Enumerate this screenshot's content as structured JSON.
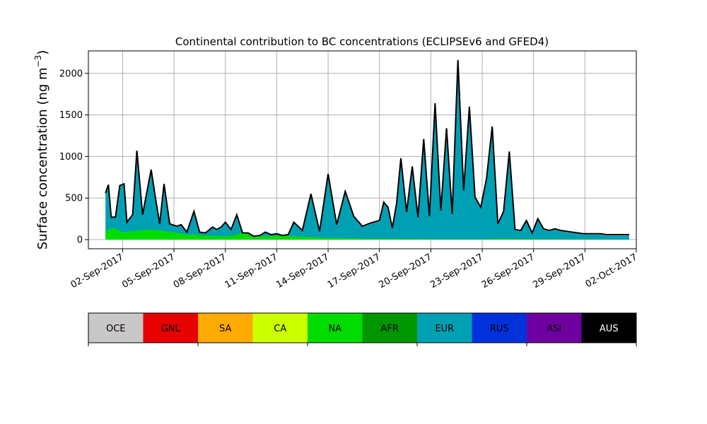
{
  "chart_data": {
    "type": "area",
    "title": "Continental contribution to BC concentrations (ECLIPSEv6 and GFED4)",
    "ylabel_base": "Surface concentration (ng m",
    "ylabel_exp": "−3",
    "ylabel_close": ")",
    "xlabel": "",
    "grid": true,
    "x_is_date": true,
    "xlim": [
      "2017-08-31T00:00",
      "2017-10-02T00:00"
    ],
    "ylim": [
      -110,
      2270
    ],
    "yticks": [
      0,
      500,
      1000,
      1500,
      2000
    ],
    "ytick_labels": [
      "0",
      "500",
      "1000",
      "1500",
      "2000"
    ],
    "xticks": [
      "2017-09-02",
      "2017-09-05",
      "2017-09-08",
      "2017-09-11",
      "2017-09-14",
      "2017-09-17",
      "2017-09-20",
      "2017-09-23",
      "2017-09-26",
      "2017-09-29",
      "2017-10-02"
    ],
    "xtick_labels": [
      "02-Sep-2017",
      "05-Sep-2017",
      "08-Sep-2017",
      "11-Sep-2017",
      "14-Sep-2017",
      "17-Sep-2017",
      "20-Sep-2017",
      "23-Sep-2017",
      "26-Sep-2017",
      "29-Sep-2017",
      "02-Oct-2017"
    ],
    "series": [
      {
        "name": "NA",
        "color": "#00dc00",
        "x": [
          "2017-09-01T00:00",
          "2017-09-01T06:00",
          "2017-09-01T12:00",
          "2017-09-02T00:00",
          "2017-09-02T12:00",
          "2017-09-03T00:00",
          "2017-09-03T12:00",
          "2017-09-04T00:00",
          "2017-09-04T12:00",
          "2017-09-05T00:00",
          "2017-09-05T12:00",
          "2017-09-06T00:00",
          "2017-09-06T12:00",
          "2017-09-07T00:00",
          "2017-09-07T12:00",
          "2017-09-08T00:00",
          "2017-09-08T12:00",
          "2017-09-09T00:00",
          "2017-09-09T12:00",
          "2017-09-10T00:00",
          "2017-09-10T12:00",
          "2017-09-11T00:00",
          "2017-09-11T12:00",
          "2017-09-12T00:00",
          "2017-09-12T12:00",
          "2017-09-13T00:00",
          "2017-09-14T00:00",
          "2017-09-15T00:00",
          "2017-09-16T00:00",
          "2017-09-17T00:00",
          "2017-09-18T00:00",
          "2017-09-19T00:00",
          "2017-09-20T00:00",
          "2017-09-21T00:00",
          "2017-09-22T00:00",
          "2017-09-23T00:00",
          "2017-09-24T00:00",
          "2017-09-25T00:00",
          "2017-09-26T00:00",
          "2017-09-27T00:00",
          "2017-09-28T00:00",
          "2017-09-29T00:00",
          "2017-09-30T00:00",
          "2017-09-30T12:00",
          "2017-10-01T00:00"
        ],
        "values": [
          100,
          130,
          140,
          90,
          100,
          110,
          120,
          115,
          100,
          90,
          70,
          60,
          55,
          50,
          45,
          40,
          50,
          90,
          50,
          45,
          40,
          45,
          50,
          40,
          35,
          30,
          20,
          15,
          12,
          10,
          8,
          8,
          6,
          5,
          5,
          4,
          10,
          8,
          6,
          5,
          4,
          4,
          3,
          3,
          3
        ]
      },
      {
        "name": "EUR",
        "color": "#00a0b4",
        "x": [
          "2017-09-01T00:00",
          "2017-09-01T04:00",
          "2017-09-01T08:00",
          "2017-09-01T14:00",
          "2017-09-01T20:00",
          "2017-09-02T02:00",
          "2017-09-02T06:00",
          "2017-09-02T14:00",
          "2017-09-02T20:00",
          "2017-09-03T04:00",
          "2017-09-03T10:00",
          "2017-09-03T16:00",
          "2017-09-03T22:00",
          "2017-09-04T04:00",
          "2017-09-04T10:00",
          "2017-09-04T18:00",
          "2017-09-05T04:00",
          "2017-09-05T10:00",
          "2017-09-05T18:00",
          "2017-09-06T04:00",
          "2017-09-06T12:00",
          "2017-09-06T20:00",
          "2017-09-07T06:00",
          "2017-09-07T12:00",
          "2017-09-07T18:00",
          "2017-09-08T00:00",
          "2017-09-08T08:00",
          "2017-09-08T16:00",
          "2017-09-09T00:00",
          "2017-09-09T08:00",
          "2017-09-09T16:00",
          "2017-09-10T00:00",
          "2017-09-10T08:00",
          "2017-09-10T16:00",
          "2017-09-11T00:00",
          "2017-09-11T08:00",
          "2017-09-11T16:00",
          "2017-09-12T00:00",
          "2017-09-12T12:00",
          "2017-09-13T00:00",
          "2017-09-13T12:00",
          "2017-09-14T00:00",
          "2017-09-14T12:00",
          "2017-09-15T00:00",
          "2017-09-15T12:00",
          "2017-09-16T00:00",
          "2017-09-16T12:00",
          "2017-09-17T00:00",
          "2017-09-17T06:00",
          "2017-09-17T12:00",
          "2017-09-17T18:00",
          "2017-09-18T00:00",
          "2017-09-18T06:00",
          "2017-09-18T14:00",
          "2017-09-18T22:00",
          "2017-09-19T06:00",
          "2017-09-19T14:00",
          "2017-09-19T22:00",
          "2017-09-20T06:00",
          "2017-09-20T14:00",
          "2017-09-20T22:00",
          "2017-09-21T06:00",
          "2017-09-21T14:00",
          "2017-09-21T22:00",
          "2017-09-22T06:00",
          "2017-09-22T14:00",
          "2017-09-22T22:00",
          "2017-09-23T06:00",
          "2017-09-23T14:00",
          "2017-09-23T22:00",
          "2017-09-24T06:00",
          "2017-09-24T14:00",
          "2017-09-24T22:00",
          "2017-09-25T06:00",
          "2017-09-25T14:00",
          "2017-09-25T22:00",
          "2017-09-26T06:00",
          "2017-09-26T14:00",
          "2017-09-26T22:00",
          "2017-09-27T06:00",
          "2017-09-27T14:00",
          "2017-09-27T22:00",
          "2017-09-28T06:00",
          "2017-09-28T14:00",
          "2017-09-28T22:00",
          "2017-09-29T06:00",
          "2017-09-29T14:00",
          "2017-09-29T22:00",
          "2017-09-30T06:00",
          "2017-09-30T14:00",
          "2017-09-30T22:00",
          "2017-10-01T06:00",
          "2017-10-01T14:00"
        ],
        "values": [
          560,
          650,
          280,
          270,
          640,
          660,
          200,
          290,
          1070,
          300,
          560,
          830,
          480,
          180,
          660,
          180,
          150,
          170,
          90,
          330,
          90,
          80,
          140,
          110,
          140,
          200,
          110,
          300,
          80,
          80,
          40,
          50,
          90,
          60,
          70,
          50,
          60,
          200,
          100,
          540,
          90,
          780,
          170,
          570,
          270,
          150,
          190,
          220,
          440,
          380,
          130,
          420,
          980,
          320,
          870,
          270,
          1200,
          270,
          1620,
          340,
          1330,
          300,
          2150,
          580,
          1580,
          500,
          380,
          720,
          1350,
          180,
          330,
          1050,
          110,
          100,
          220,
          70,
          240,
          120,
          100,
          120,
          100,
          90,
          80,
          70,
          60,
          60,
          60,
          60,
          50,
          50,
          50,
          50,
          50
        ]
      }
    ],
    "total_line": {
      "color": "#000000",
      "note_from_image": "",
      "x": [
        "2017-09-01T00:00",
        "2017-09-01T04:00",
        "2017-09-01T08:00",
        "2017-09-01T14:00",
        "2017-09-01T20:00",
        "2017-09-02T02:00",
        "2017-09-02T06:00",
        "2017-09-02T14:00",
        "2017-09-02T20:00",
        "2017-09-03T04:00",
        "2017-09-03T10:00",
        "2017-09-03T16:00",
        "2017-09-03T22:00",
        "2017-09-04T04:00",
        "2017-09-04T10:00",
        "2017-09-04T18:00",
        "2017-09-05T04:00",
        "2017-09-05T10:00",
        "2017-09-05T18:00",
        "2017-09-06T04:00",
        "2017-09-06T12:00",
        "2017-09-06T20:00",
        "2017-09-07T06:00",
        "2017-09-07T12:00",
        "2017-09-07T18:00",
        "2017-09-08T00:00",
        "2017-09-08T08:00",
        "2017-09-08T16:00",
        "2017-09-09T00:00",
        "2017-09-09T08:00",
        "2017-09-09T16:00",
        "2017-09-10T00:00",
        "2017-09-10T08:00",
        "2017-09-10T16:00",
        "2017-09-11T00:00",
        "2017-09-11T08:00",
        "2017-09-11T16:00",
        "2017-09-12T00:00",
        "2017-09-12T12:00",
        "2017-09-13T00:00",
        "2017-09-13T12:00",
        "2017-09-14T00:00",
        "2017-09-14T12:00",
        "2017-09-15T00:00",
        "2017-09-15T12:00",
        "2017-09-16T00:00",
        "2017-09-16T12:00",
        "2017-09-17T00:00",
        "2017-09-17T06:00",
        "2017-09-17T12:00",
        "2017-09-17T18:00",
        "2017-09-18T00:00",
        "2017-09-18T06:00",
        "2017-09-18T14:00",
        "2017-09-18T22:00",
        "2017-09-19T06:00",
        "2017-09-19T14:00",
        "2017-09-19T22:00",
        "2017-09-20T06:00",
        "2017-09-20T14:00",
        "2017-09-20T22:00",
        "2017-09-21T06:00",
        "2017-09-21T14:00",
        "2017-09-21T22:00",
        "2017-09-22T06:00",
        "2017-09-22T14:00",
        "2017-09-22T22:00",
        "2017-09-23T06:00",
        "2017-09-23T14:00",
        "2017-09-23T22:00",
        "2017-09-24T06:00",
        "2017-09-24T14:00",
        "2017-09-24T22:00",
        "2017-09-25T06:00",
        "2017-09-25T14:00",
        "2017-09-25T22:00",
        "2017-09-26T06:00",
        "2017-09-26T14:00",
        "2017-09-26T22:00",
        "2017-09-27T06:00",
        "2017-09-27T14:00",
        "2017-09-27T22:00",
        "2017-09-28T06:00",
        "2017-09-28T14:00",
        "2017-09-28T22:00",
        "2017-09-29T06:00",
        "2017-09-29T14:00",
        "2017-09-29T22:00",
        "2017-09-30T06:00",
        "2017-09-30T14:00",
        "2017-09-30T22:00",
        "2017-10-01T06:00",
        "2017-10-01T14:00"
      ],
      "values": [
        560,
        660,
        270,
        270,
        650,
        670,
        210,
        300,
        1070,
        300,
        570,
        840,
        500,
        190,
        670,
        190,
        160,
        180,
        90,
        340,
        90,
        80,
        150,
        120,
        150,
        210,
        120,
        300,
        80,
        80,
        40,
        50,
        90,
        60,
        70,
        50,
        60,
        210,
        110,
        550,
        100,
        790,
        180,
        580,
        280,
        160,
        200,
        230,
        450,
        390,
        140,
        430,
        980,
        330,
        880,
        270,
        1210,
        280,
        1640,
        350,
        1340,
        310,
        2160,
        590,
        1600,
        510,
        390,
        730,
        1360,
        190,
        340,
        1060,
        120,
        110,
        230,
        80,
        250,
        130,
        110,
        130,
        110,
        100,
        90,
        80,
        70,
        70,
        70,
        70,
        60,
        60,
        60,
        60,
        60
      ]
    }
  },
  "colorbar": {
    "segments": [
      {
        "label": "OCE",
        "color": "#c8c8c8"
      },
      {
        "label": "GNL",
        "color": "#e60000"
      },
      {
        "label": "SA",
        "color": "#ffaa00"
      },
      {
        "label": "CA",
        "color": "#ccff00"
      },
      {
        "label": "NA",
        "color": "#00dc00"
      },
      {
        "label": "AFR",
        "color": "#009600"
      },
      {
        "label": "EUR",
        "color": "#00a0b4"
      },
      {
        "label": "RUS",
        "color": "#0032dc"
      },
      {
        "label": "ASI",
        "color": "#6e00a0"
      },
      {
        "label": "AUS",
        "color": "#000000"
      }
    ]
  }
}
